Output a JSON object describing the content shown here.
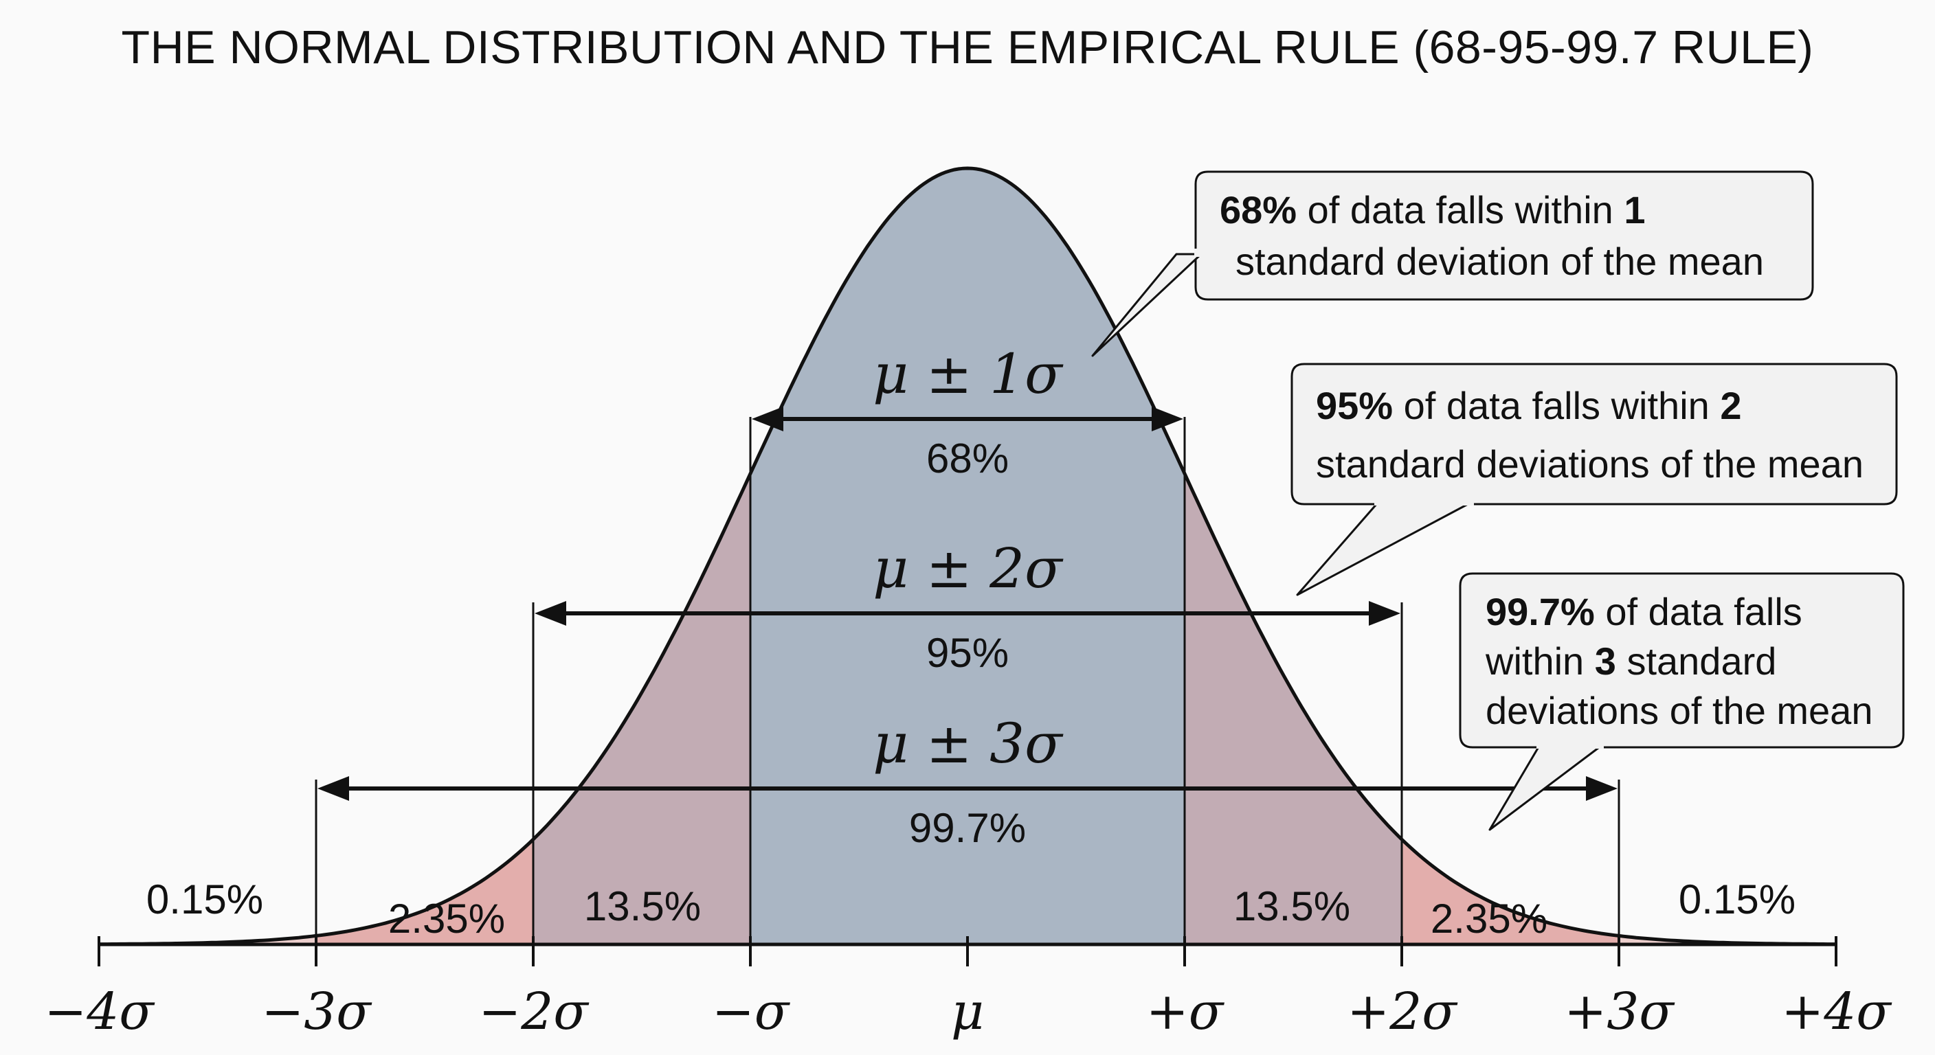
{
  "title": "THE NORMAL DISTRIBUTION AND THE EMPIRICAL RULE (68-95-99.7 RULE)",
  "colors": {
    "center_fill": "#aab6c4",
    "mid_fill": "#c2acb4",
    "outer_fill": "#e3aeac",
    "tail_fill": "#eccfcd",
    "curve": "#111111",
    "callout_fill": "#f2f2f2"
  },
  "axis": {
    "ticks": [
      {
        "label": "−4σ",
        "value": -4
      },
      {
        "label": "−3σ",
        "value": -3
      },
      {
        "label": "−2σ",
        "value": -2
      },
      {
        "label": "−σ",
        "value": -1
      },
      {
        "label": "μ",
        "value": 0
      },
      {
        "label": "+σ",
        "value": 1
      },
      {
        "label": "+2σ",
        "value": 2
      },
      {
        "label": "+3σ",
        "value": 3
      },
      {
        "label": "+4σ",
        "value": 4
      }
    ]
  },
  "regions": {
    "left_tail": "0.15%",
    "left_outer": "2.35%",
    "left_mid": "13.5%",
    "right_mid": "13.5%",
    "right_outer": "2.35%",
    "right_tail": "0.15%"
  },
  "ranges": [
    {
      "label": "μ ± 1σ",
      "percent": "68%",
      "k": 1
    },
    {
      "label": "μ ± 2σ",
      "percent": "95%",
      "k": 2
    },
    {
      "label": "μ ± 3σ",
      "percent": "99.7%",
      "k": 3
    }
  ],
  "callouts": [
    {
      "bold": "68%",
      "line1": " of data falls within ",
      "num": "1",
      "line2": "standard deviation of the mean"
    },
    {
      "bold": "95%",
      "line1": " of data falls within ",
      "num": "2",
      "line2": "standard deviations of the mean"
    },
    {
      "bold": "99.7%",
      "line1": " of data falls",
      "line2a": "within ",
      "num": "3",
      "line2b": " standard",
      "line3": "deviations of the mean"
    }
  ]
}
